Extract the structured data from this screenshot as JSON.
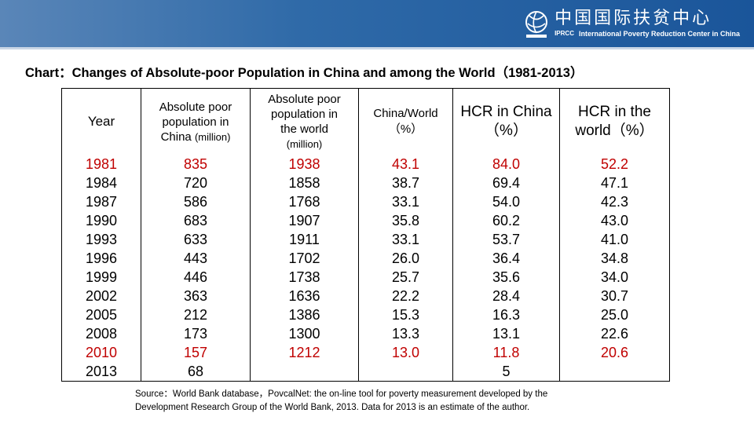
{
  "header": {
    "logo_cn": "中国国际扶贫中心",
    "logo_abbr": "IPRCC",
    "logo_en": "International Poverty Reduction Center in China"
  },
  "title": "Chart：Changes of Absolute-poor Population in China and among the World（1981-2013）",
  "table": {
    "headers": {
      "year": "Year",
      "china_abs_line1": "Absolute poor",
      "china_abs_line2": "population in",
      "china_abs_line3": "China",
      "china_abs_unit": "(million)",
      "world_abs_line1": "Absolute poor",
      "world_abs_line2": "population in",
      "world_abs_line3": "the world",
      "world_abs_unit": "(million)",
      "ratio_line1": "China/World",
      "ratio_line2": "（%）",
      "hcr_china_line1": "HCR in China",
      "hcr_china_line2": "（%）",
      "hcr_world_line1": "HCR in the",
      "hcr_world_line2": "world（%）"
    },
    "rows": [
      {
        "year": "1981",
        "china": "835",
        "world": "1938",
        "ratio": "43.1",
        "hcr_china": "84.0",
        "hcr_world": "52.2",
        "style": "red"
      },
      {
        "year": "1984",
        "china": "720",
        "world": "1858",
        "ratio": "38.7",
        "hcr_china": "69.4",
        "hcr_world": "47.1",
        "style": "blk"
      },
      {
        "year": "1987",
        "china": "586",
        "world": "1768",
        "ratio": "33.1",
        "hcr_china": "54.0",
        "hcr_world": "42.3",
        "style": "blk"
      },
      {
        "year": "1990",
        "china": "683",
        "world": "1907",
        "ratio": "35.8",
        "hcr_china": "60.2",
        "hcr_world": "43.0",
        "style": "blk"
      },
      {
        "year": "1993",
        "china": "633",
        "world": "1911",
        "ratio": "33.1",
        "hcr_china": "53.7",
        "hcr_world": "41.0",
        "style": "blk"
      },
      {
        "year": "1996",
        "china": "443",
        "world": "1702",
        "ratio": "26.0",
        "hcr_china": "36.4",
        "hcr_world": "34.8",
        "style": "blk"
      },
      {
        "year": "1999",
        "china": "446",
        "world": "1738",
        "ratio": "25.7",
        "hcr_china": "35.6",
        "hcr_world": "34.0",
        "style": "blk"
      },
      {
        "year": "2002",
        "china": "363",
        "world": "1636",
        "ratio": "22.2",
        "hcr_china": "28.4",
        "hcr_world": "30.7",
        "style": "blk"
      },
      {
        "year": "2005",
        "china": "212",
        "world": "1386",
        "ratio": "15.3",
        "hcr_china": "16.3",
        "hcr_world": "25.0",
        "style": "blk"
      },
      {
        "year": "2008",
        "china": "173",
        "world": "1300",
        "ratio": "13.3",
        "hcr_china": "13.1",
        "hcr_world": "22.6",
        "style": "blk"
      },
      {
        "year": "2010",
        "china": "157",
        "world": "1212",
        "ratio": "13.0",
        "hcr_china": "11.8",
        "hcr_world": "20.6",
        "style": "red"
      },
      {
        "year": "2013",
        "china": "68",
        "world": "",
        "ratio": "",
        "hcr_china": "5",
        "hcr_world": "",
        "style": "blk"
      }
    ]
  },
  "source": {
    "line1": "Source：World Bank database，PovcalNet: the on-line tool for poverty measurement developed by the",
    "line2": "Development Research Group of the World Bank, 2013. Data for 2013 is an estimate of the author."
  }
}
